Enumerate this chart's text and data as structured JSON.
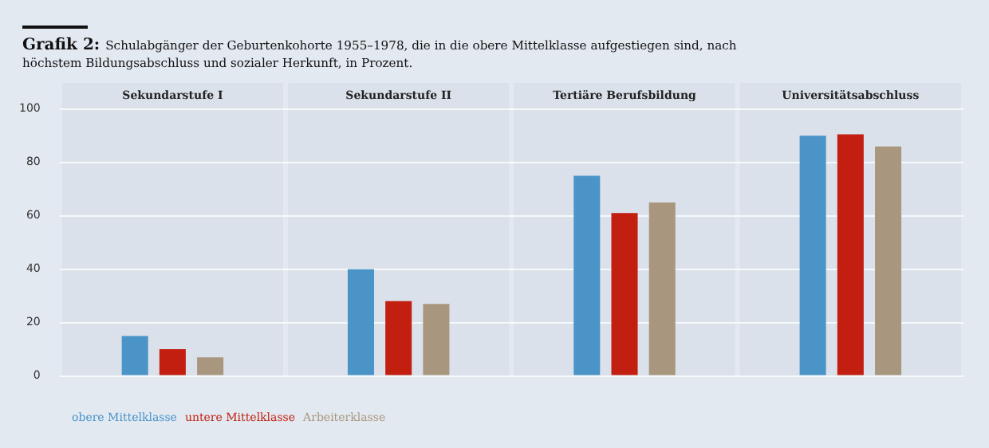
{
  "chart_data": {
    "type": "bar",
    "title": "Grafik 2:",
    "subtitle": "Schulabgänger der Geburtenkohorte 1955–1978, die in die obere Mittelklasse aufgestiegen sind, nach höchstem Bildungsabschluss und sozialer Herkunft, in Prozent.",
    "categories": [
      "Sekundarstufe I",
      "Sekundarstufe II",
      "Tertiäre Berufsbildung",
      "Universitätsabschluss"
    ],
    "series": [
      {
        "name": "obere Mittelklasse",
        "color": "#4a94c8",
        "values": [
          15,
          40,
          75,
          90
        ]
      },
      {
        "name": "untere Mittelklasse",
        "color": "#c21f10",
        "values": [
          10,
          28,
          61,
          90.5
        ]
      },
      {
        "name": "Arbeiterklasse",
        "color": "#a8977e",
        "values": [
          7,
          27,
          65,
          86
        ]
      }
    ],
    "ylim": [
      0,
      100
    ],
    "yticks": [
      0,
      20,
      40,
      60,
      80,
      100
    ],
    "grid": "y",
    "legend": "bottom left"
  }
}
